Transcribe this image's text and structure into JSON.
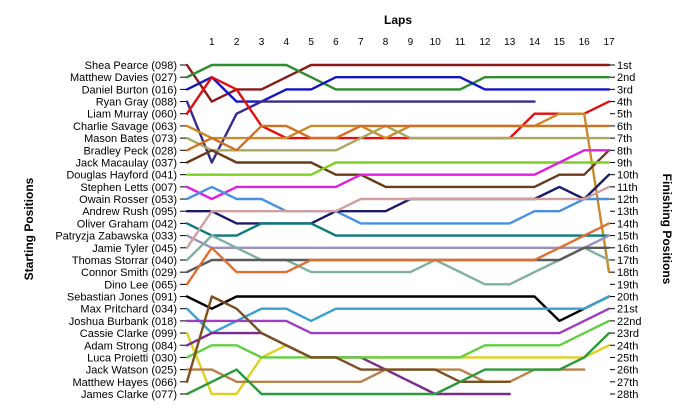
{
  "chart_data": {
    "type": "line",
    "title": "Laps",
    "ylabel_left": "Starting Positions",
    "ylabel_right": "Finishing Positions",
    "x": [
      0,
      1,
      2,
      3,
      4,
      5,
      6,
      7,
      8,
      9,
      10,
      11,
      12,
      13,
      14,
      15,
      16,
      17
    ],
    "x_tick_labels": [
      "1",
      "2",
      "3",
      "4",
      "5",
      "6",
      "7",
      "8",
      "9",
      "10",
      "11",
      "12",
      "13",
      "14",
      "15",
      "16",
      "17"
    ],
    "ylim": [
      1,
      28
    ],
    "grid": false,
    "starting_labels": [
      "Shea Pearce (098)",
      "Matthew Davies (027)",
      "Daniel Burton (016)",
      "Ryan Gray (088)",
      "Liam Murray (060)",
      "Charlie Savage (063)",
      "Mason Bates (073)",
      "Bradley Peck (028)",
      "Jack Macaulay (037)",
      "Douglas Hayford (041)",
      "Stephen Letts (007)",
      "Owain Rosser (053)",
      "Andrew Rush (095)",
      "Oliver Graham (042)",
      "Patryzja Zabawska (033)",
      "Jamie Tyler (045)",
      "Thomas Storrar (040)",
      "Connor Smith (029)",
      "Dino Lee (065)",
      "Sebastian Jones (091)",
      "Max Pritchard (034)",
      "Joshua Burbank (018)",
      "Cassie Clarke (099)",
      "Adam Strong (084)",
      "Luca Proietti (030)",
      "Jack Watson (025)",
      "Matthew Hayes (066)",
      "James Clarke (077)"
    ],
    "finishing_labels": [
      "1st",
      "2nd",
      "3rd",
      "4th",
      "5th",
      "6th",
      "7th",
      "8th",
      "9th",
      "10th",
      "11th",
      "12th",
      "13th",
      "14th",
      "15th",
      "16th",
      "17th",
      "18th",
      "19th",
      "20th",
      "21st",
      "22nd",
      "23rd",
      "24th",
      "25th",
      "26th",
      "27th",
      "28th"
    ],
    "series": [
      {
        "color": "#8B1A1A",
        "values": [
          1,
          4,
          3,
          3,
          2,
          1,
          1,
          1,
          1,
          1,
          1,
          1,
          1,
          1,
          1,
          1,
          1,
          1
        ]
      },
      {
        "color": "#2E8B2E",
        "values": [
          2,
          1,
          1,
          1,
          1,
          2,
          3,
          3,
          3,
          3,
          3,
          3,
          2,
          2,
          2,
          2,
          2,
          2
        ]
      },
      {
        "color": "#1515C0",
        "values": [
          3,
          2,
          4,
          4,
          3,
          3,
          2,
          2,
          2,
          2,
          2,
          2,
          3,
          3,
          3,
          3,
          3,
          3
        ]
      },
      {
        "color": "#3A2A8A",
        "values": [
          4,
          9,
          5,
          4,
          4,
          4,
          4,
          4,
          4,
          4,
          4,
          4,
          4,
          4,
          4,
          null,
          null,
          null
        ]
      },
      {
        "color": "#E01010",
        "values": [
          5,
          2,
          3,
          6,
          7,
          7,
          7,
          7,
          7,
          7,
          7,
          7,
          7,
          7,
          5,
          5,
          5,
          4
        ]
      },
      {
        "color": "#C88A2A",
        "values": [
          6,
          7,
          7,
          7,
          7,
          6,
          6,
          6,
          7,
          6,
          6,
          6,
          6,
          6,
          6,
          5,
          5,
          18
        ]
      },
      {
        "color": "#A8A860",
        "values": [
          7,
          8,
          8,
          8,
          8,
          8,
          8,
          7,
          6,
          7,
          7,
          7,
          7,
          7,
          7,
          7,
          7,
          7
        ]
      },
      {
        "color": "#D07020",
        "values": [
          8,
          7,
          8,
          6,
          6,
          7,
          7,
          6,
          6,
          6,
          6,
          6,
          6,
          6,
          6,
          6,
          6,
          6
        ]
      },
      {
        "color": "#6B3A1A",
        "values": [
          9,
          8,
          9,
          9,
          9,
          9,
          10,
          10,
          11,
          11,
          11,
          11,
          11,
          11,
          11,
          10,
          10,
          8
        ]
      },
      {
        "color": "#7FD020",
        "values": [
          10,
          10,
          10,
          10,
          10,
          10,
          9,
          9,
          9,
          9,
          9,
          9,
          9,
          9,
          9,
          9,
          9,
          9
        ]
      },
      {
        "color": "#E020E0",
        "values": [
          11,
          12,
          11,
          11,
          11,
          11,
          11,
          10,
          10,
          10,
          10,
          10,
          10,
          10,
          10,
          9,
          8,
          8
        ]
      },
      {
        "color": "#4A90E0",
        "values": [
          12,
          11,
          12,
          12,
          13,
          13,
          13,
          14,
          14,
          14,
          14,
          14,
          14,
          14,
          13,
          13,
          12,
          12
        ]
      },
      {
        "color": "#1A1A6A",
        "values": [
          13,
          13,
          14,
          14,
          14,
          14,
          13,
          13,
          13,
          12,
          12,
          12,
          12,
          12,
          12,
          11,
          12,
          10
        ]
      },
      {
        "color": "#0A7A7A",
        "values": [
          14,
          15,
          15,
          14,
          14,
          14,
          15,
          15,
          15,
          15,
          15,
          15,
          15,
          15,
          15,
          15,
          15,
          15
        ]
      },
      {
        "color": "#9A90C0",
        "values": [
          15,
          16,
          16,
          16,
          16,
          16,
          16,
          16,
          16,
          16,
          16,
          16,
          16,
          16,
          16,
          16,
          16,
          15
        ]
      },
      {
        "color": "#D0A0A0",
        "values": [
          16,
          13,
          13,
          13,
          13,
          13,
          13,
          12,
          12,
          12,
          12,
          12,
          12,
          12,
          12,
          12,
          12,
          11
        ]
      },
      {
        "color": "#80B0A0",
        "values": [
          17,
          15,
          16,
          17,
          17,
          18,
          18,
          18,
          18,
          18,
          17,
          18,
          19,
          19,
          18,
          17,
          16,
          17
        ]
      },
      {
        "color": "#5A5A5A",
        "values": [
          18,
          17,
          17,
          17,
          17,
          17,
          17,
          17,
          17,
          17,
          17,
          17,
          17,
          17,
          17,
          17,
          16,
          16
        ]
      },
      {
        "color": "#E07030",
        "values": [
          19,
          16,
          18,
          18,
          18,
          17,
          17,
          17,
          17,
          17,
          17,
          17,
          17,
          17,
          17,
          16,
          15,
          14
        ]
      },
      {
        "color": "#000000",
        "values": [
          20,
          21,
          20,
          20,
          20,
          20,
          20,
          20,
          20,
          20,
          20,
          20,
          20,
          20,
          20,
          22,
          21,
          20
        ]
      },
      {
        "color": "#3AA0D0",
        "values": [
          21,
          23,
          22,
          21,
          21,
          22,
          21,
          21,
          21,
          21,
          21,
          21,
          21,
          21,
          21,
          21,
          21,
          20
        ]
      },
      {
        "color": "#9A40C0",
        "values": [
          22,
          22,
          22,
          22,
          22,
          23,
          23,
          23,
          23,
          23,
          23,
          23,
          23,
          23,
          23,
          23,
          22,
          21
        ]
      },
      {
        "color": "#E0D020",
        "values": [
          23,
          28,
          28,
          25,
          24,
          25,
          25,
          25,
          25,
          25,
          25,
          25,
          25,
          25,
          25,
          25,
          25,
          24
        ]
      },
      {
        "color": "#7A2A8A",
        "values": [
          24,
          23,
          23,
          23,
          24,
          25,
          25,
          25,
          26,
          27,
          28,
          28,
          28,
          28,
          null,
          null,
          null,
          null
        ]
      },
      {
        "color": "#60D040",
        "values": [
          25,
          24,
          24,
          25,
          25,
          25,
          25,
          25,
          25,
          25,
          25,
          25,
          24,
          24,
          24,
          24,
          23,
          22
        ]
      },
      {
        "color": "#B8804A",
        "values": [
          26,
          26,
          27,
          27,
          27,
          27,
          27,
          27,
          26,
          26,
          26,
          26,
          27,
          27,
          26,
          26,
          26,
          null
        ]
      },
      {
        "color": "#7A5020",
        "values": [
          27,
          20,
          21,
          23,
          24,
          25,
          25,
          26,
          26,
          26,
          26,
          27,
          27,
          27,
          null,
          null,
          null,
          null
        ]
      },
      {
        "color": "#2A9A3A",
        "values": [
          28,
          27,
          26,
          28,
          28,
          28,
          28,
          28,
          28,
          28,
          28,
          27,
          26,
          26,
          26,
          26,
          25,
          23
        ]
      }
    ]
  }
}
